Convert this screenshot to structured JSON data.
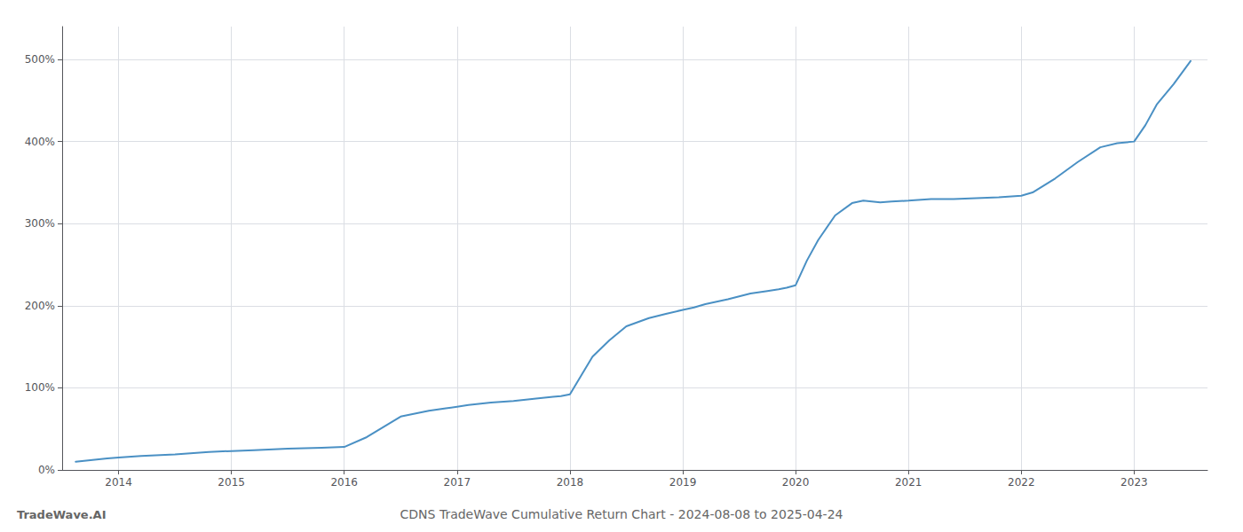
{
  "chart_data": {
    "type": "line",
    "title": "CDNS TradeWave Cumulative Return Chart - 2024-08-08 to 2025-04-24",
    "annotations": [
      "TradeWave.AI"
    ],
    "color": "#4a90c4",
    "grid": true,
    "x": [
      2013.62,
      2013.75,
      2013.9,
      2014.0,
      2014.2,
      2014.5,
      2014.8,
      2015.0,
      2015.2,
      2015.5,
      2015.8,
      2016.0,
      2016.2,
      2016.5,
      2016.75,
      2016.9,
      2017.0,
      2017.1,
      2017.3,
      2017.5,
      2017.7,
      2017.85,
      2017.92,
      2018.0,
      2018.1,
      2018.2,
      2018.35,
      2018.5,
      2018.7,
      2018.85,
      2019.0,
      2019.1,
      2019.2,
      2019.4,
      2019.6,
      2019.75,
      2019.85,
      2019.92,
      2020.0,
      2020.1,
      2020.2,
      2020.35,
      2020.5,
      2020.6,
      2020.75,
      2020.85,
      2021.0,
      2021.2,
      2021.4,
      2021.6,
      2021.8,
      2022.0,
      2022.1,
      2022.3,
      2022.5,
      2022.7,
      2022.85,
      2023.0,
      2023.1,
      2023.2,
      2023.35,
      2023.5
    ],
    "values": [
      10,
      12,
      14,
      15,
      17,
      19,
      22,
      23,
      24,
      26,
      27,
      28,
      40,
      65,
      72,
      75,
      77,
      79,
      82,
      84,
      87,
      89,
      90,
      92,
      115,
      138,
      158,
      175,
      185,
      190,
      195,
      198,
      202,
      208,
      215,
      218,
      220,
      222,
      225,
      255,
      280,
      310,
      325,
      328,
      326,
      327,
      328,
      330,
      330,
      331,
      332,
      334,
      338,
      355,
      375,
      393,
      398,
      400,
      420,
      445,
      470,
      498
    ],
    "xlim": [
      2013.5,
      2023.65
    ],
    "xticks": [
      2014,
      2015,
      2016,
      2017,
      2018,
      2019,
      2020,
      2021,
      2022,
      2023
    ],
    "ylim": [
      0,
      540
    ],
    "yticks": [
      {
        "value": 0,
        "label": "0%"
      },
      {
        "value": 100,
        "label": "100%"
      },
      {
        "value": 200,
        "label": "200%"
      },
      {
        "value": 300,
        "label": "300%"
      },
      {
        "value": 400,
        "label": "400%"
      },
      {
        "value": 500,
        "label": "500%"
      }
    ]
  }
}
